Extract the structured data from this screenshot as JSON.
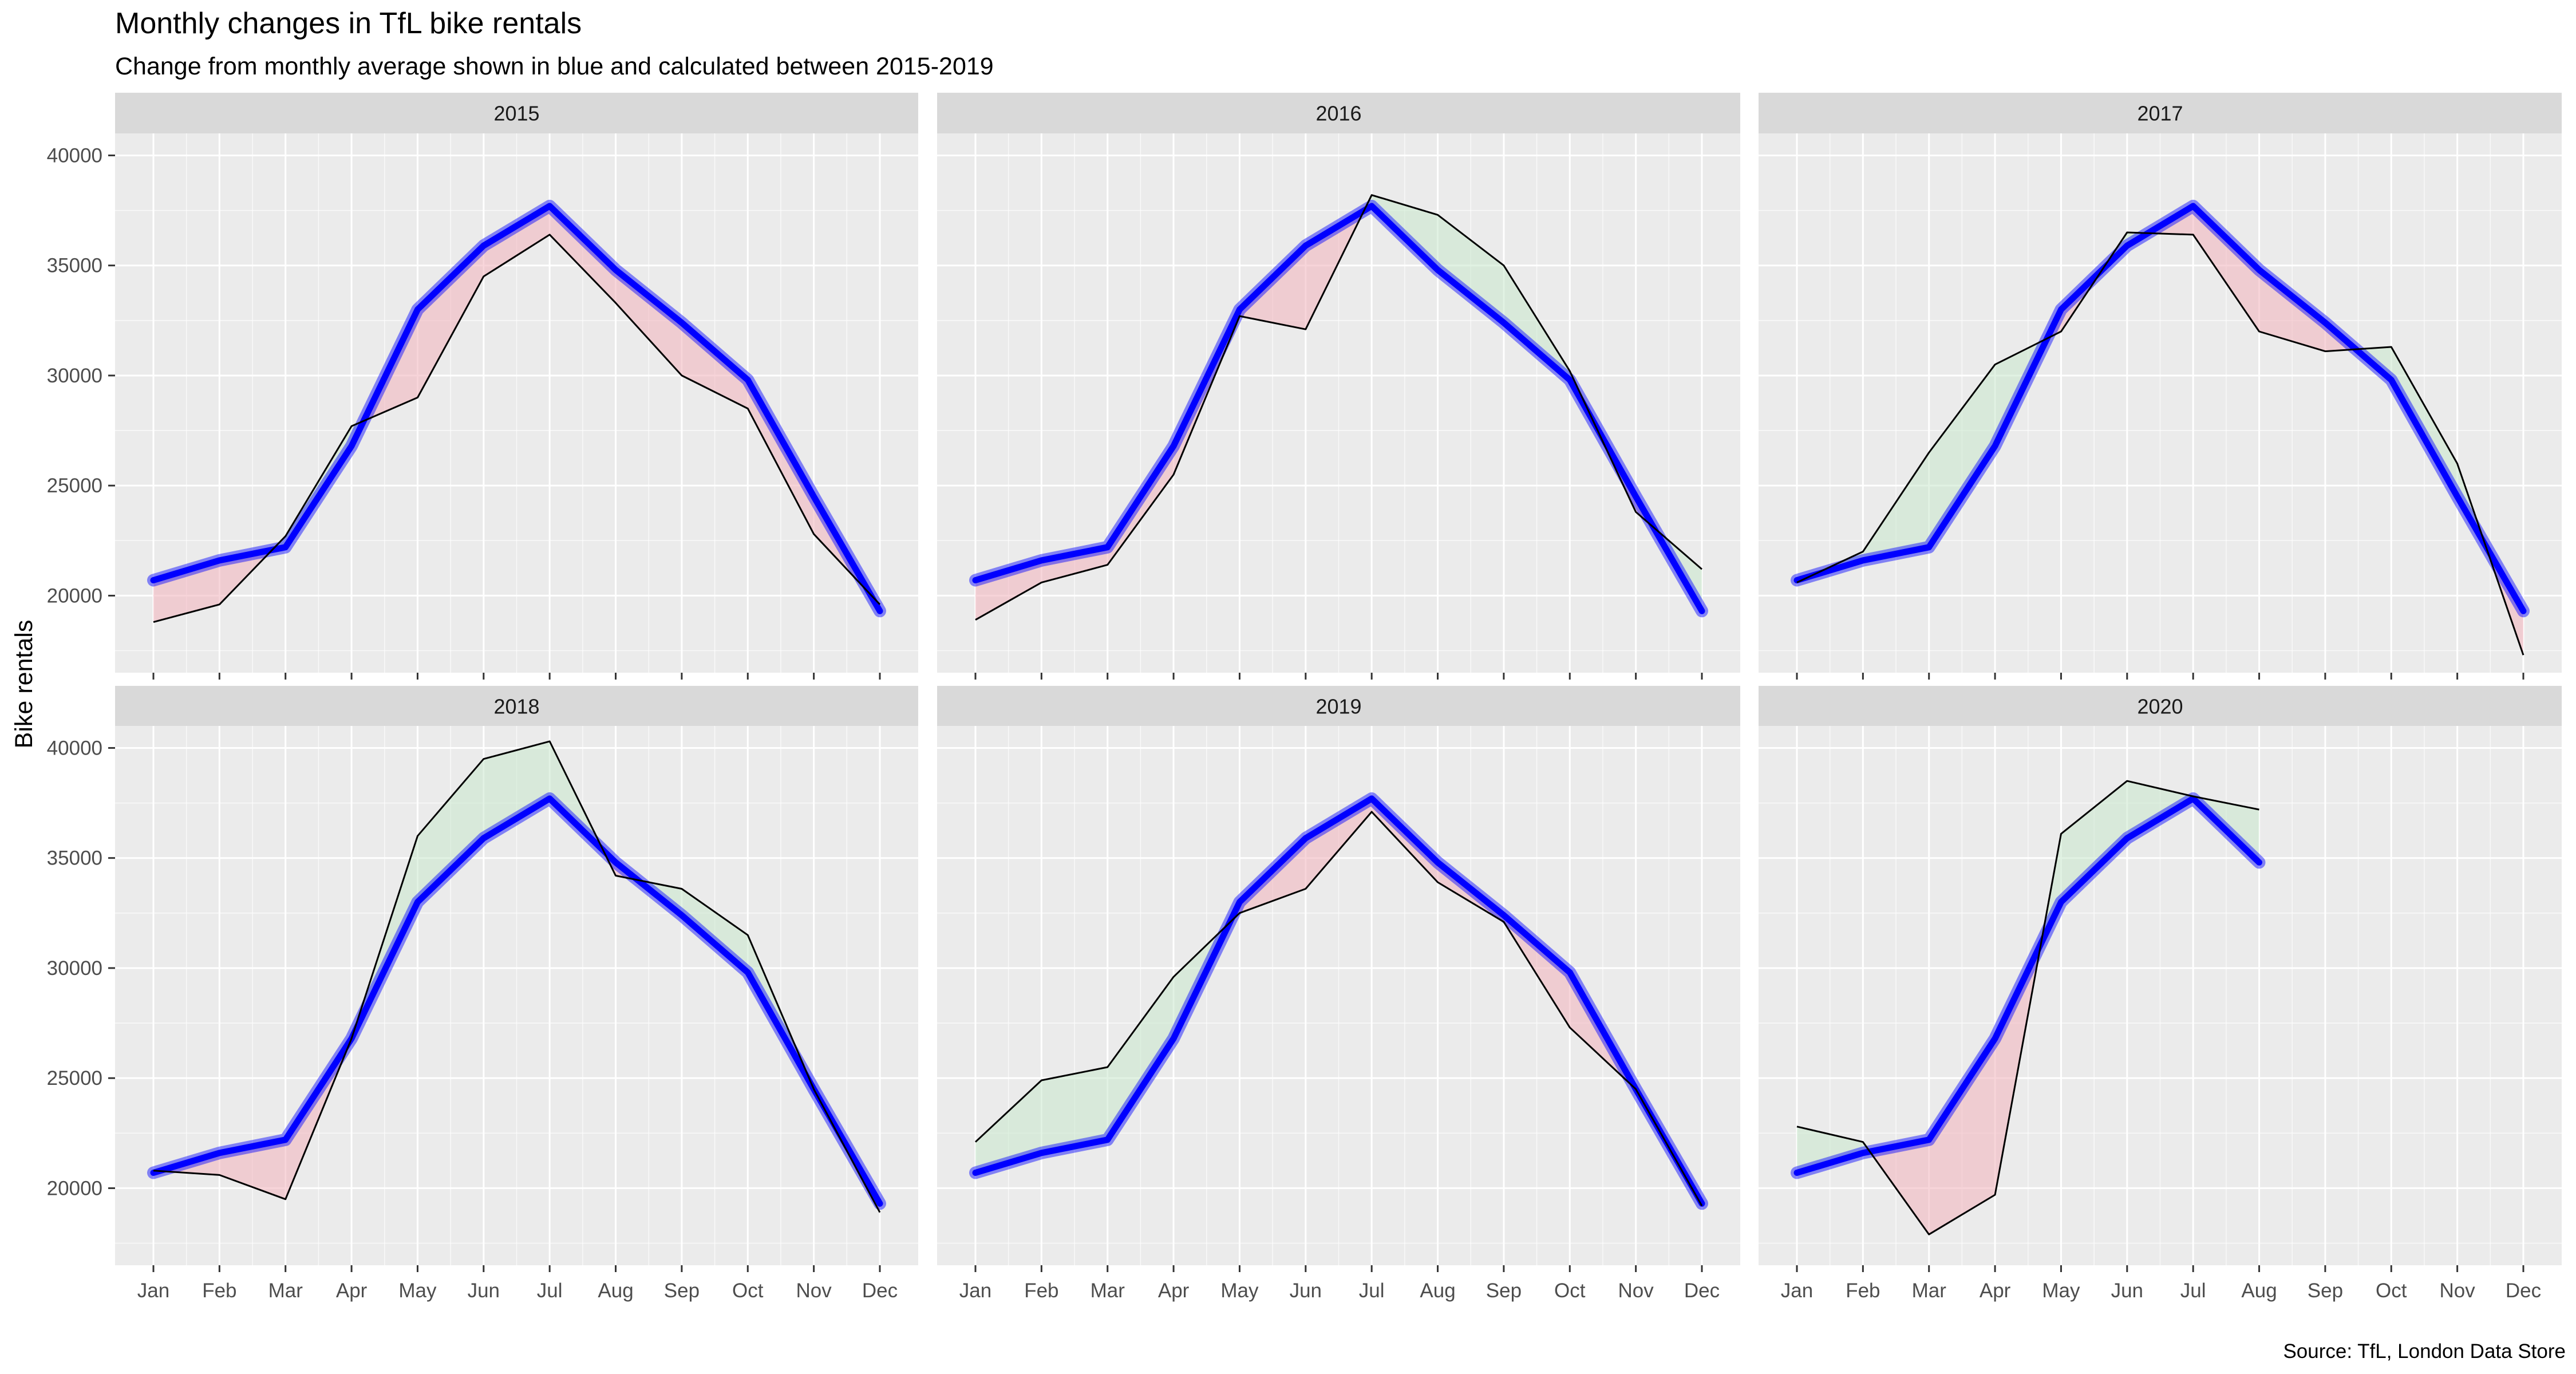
{
  "title": "Monthly changes in TfL bike rentals",
  "subtitle": "Change from monthly average shown in blue and calculated between 2015-2019",
  "caption": "Source: TfL, London Data Store",
  "colors": {
    "panel_bg": "#EBEBEB",
    "strip_bg": "#D9D9D9",
    "grid": "#FFFFFF",
    "avg_line": "#0000FF",
    "above_fill": "#C9E8CC",
    "below_fill": "#F2B8BF",
    "actual_line": "#000000",
    "text": "#1A1A1A",
    "axis_text": "#4D4D4D"
  },
  "chart_data": {
    "type": "line",
    "facet_by": "year",
    "xlabel": "",
    "ylabel": "Bike rentals",
    "ylim": [
      16500,
      41000
    ],
    "yticks": [
      20000,
      25000,
      30000,
      35000,
      40000
    ],
    "ytick_labels": [
      "20000",
      "25000",
      "30000",
      "35000",
      "40000"
    ],
    "months": [
      "Jan",
      "Feb",
      "Mar",
      "Apr",
      "May",
      "Jun",
      "Jul",
      "Aug",
      "Sep",
      "Oct",
      "Nov",
      "Dec"
    ],
    "average_2015_2019": [
      20700,
      21600,
      22200,
      26800,
      33000,
      35900,
      37700,
      34800,
      32400,
      29800,
      24500,
      19300
    ],
    "panels": [
      {
        "year": "2015",
        "actual": [
          18800,
          19600,
          22700,
          27700,
          29000,
          34500,
          36400,
          33300,
          30000,
          28500,
          22800,
          19600
        ]
      },
      {
        "year": "2016",
        "actual": [
          18900,
          20600,
          21400,
          25500,
          32700,
          32100,
          38200,
          37300,
          35000,
          30200,
          23800,
          21200
        ]
      },
      {
        "year": "2017",
        "actual": [
          20600,
          22000,
          26500,
          30500,
          32000,
          36500,
          36400,
          32000,
          31100,
          31300,
          26000,
          17300
        ]
      },
      {
        "year": "2018",
        "actual": [
          20800,
          20600,
          19500,
          26800,
          36000,
          39500,
          40300,
          34200,
          33600,
          31500,
          24500,
          18900
        ]
      },
      {
        "year": "2019",
        "actual": [
          22100,
          24900,
          25500,
          29600,
          32500,
          33600,
          37100,
          33900,
          32100,
          27300,
          24500,
          19200
        ]
      },
      {
        "year": "2020",
        "actual": [
          22800,
          22100,
          17900,
          19700,
          36100,
          38500,
          37800,
          37200
        ]
      }
    ]
  }
}
